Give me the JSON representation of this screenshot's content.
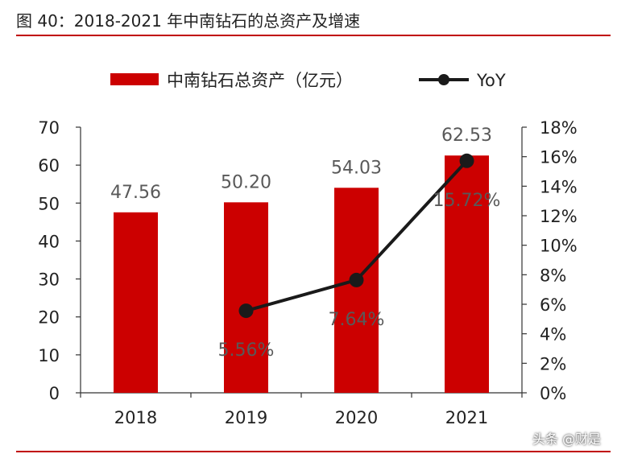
{
  "figure": {
    "title": "图 40：2018-2021 年中南钻石的总资产及增速",
    "watermark": "头条 @财是"
  },
  "colors": {
    "bar": "#cc0000",
    "line": "#1a1a1a",
    "rule": "#c00000"
  },
  "chart_data": {
    "type": "bar",
    "categories": [
      "2018",
      "2019",
      "2020",
      "2021"
    ],
    "series": [
      {
        "name": "中南钻石总资产（亿元）",
        "type": "bar",
        "axis": "left",
        "values": [
          47.56,
          50.2,
          54.03,
          62.53
        ],
        "labels": [
          "47.56",
          "50.20",
          "54.03",
          "62.53"
        ]
      },
      {
        "name": "YoY",
        "type": "line",
        "axis": "right",
        "values": [
          null,
          5.56,
          7.64,
          15.72
        ],
        "labels": [
          "",
          "5.56%",
          "7.64%",
          "15.72%"
        ]
      }
    ],
    "y_left": {
      "ylim": [
        0,
        70
      ],
      "ticks": [
        "0",
        "10",
        "20",
        "30",
        "40",
        "50",
        "60",
        "70"
      ]
    },
    "y_right": {
      "ylim": [
        0,
        18
      ],
      "ticks": [
        "0%",
        "2%",
        "4%",
        "6%",
        "8%",
        "10%",
        "12%",
        "14%",
        "16%",
        "18%"
      ]
    },
    "legend_position": "top-center",
    "grid": false
  }
}
